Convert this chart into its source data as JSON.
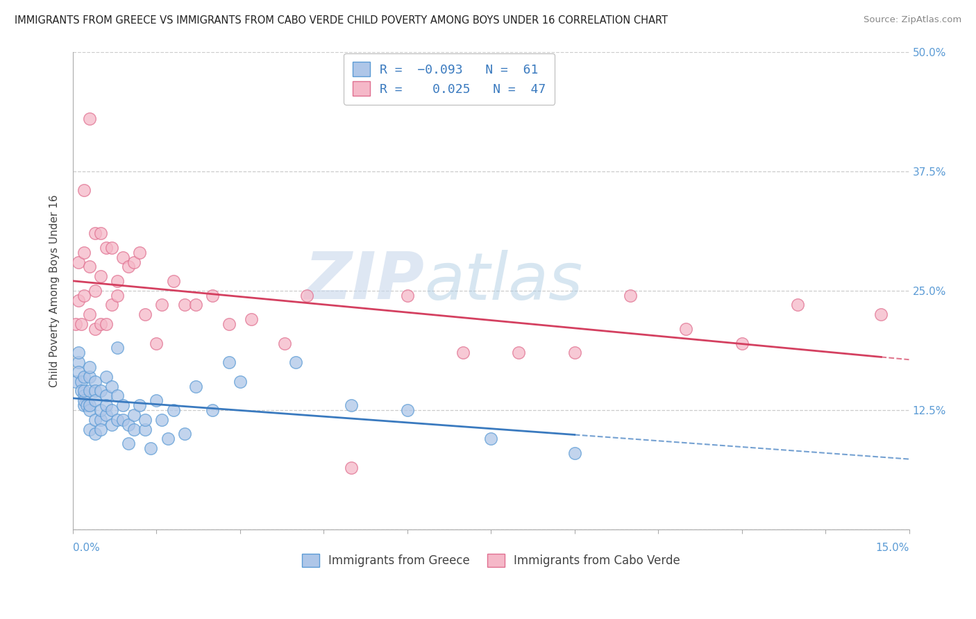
{
  "title": "IMMIGRANTS FROM GREECE VS IMMIGRANTS FROM CABO VERDE CHILD POVERTY AMONG BOYS UNDER 16 CORRELATION CHART",
  "source": "Source: ZipAtlas.com",
  "ylabel": "Child Poverty Among Boys Under 16",
  "xlim": [
    0,
    0.15
  ],
  "ylim": [
    0,
    0.5
  ],
  "yticks": [
    0.0,
    0.125,
    0.25,
    0.375,
    0.5
  ],
  "yticklabels": [
    "",
    "12.5%",
    "25.0%",
    "37.5%",
    "50.0%"
  ],
  "xtick_left_label": "0.0%",
  "xtick_right_label": "15.0%",
  "greece_color": "#aec6e8",
  "greece_edge": "#5b9bd5",
  "caboverde_color": "#f5b8c8",
  "caboverde_edge": "#e07090",
  "trend_greece_color": "#3a7abf",
  "trend_caboverde_color": "#d44060",
  "R_greece": -0.093,
  "N_greece": 61,
  "R_caboverde": 0.025,
  "N_caboverde": 47,
  "legend_label_greece": "Immigrants from Greece",
  "legend_label_caboverde": "Immigrants from Cabo Verde",
  "watermark_zip": "ZIP",
  "watermark_atlas": "atlas",
  "background": "#ffffff",
  "greece_x": [
    0.0005,
    0.001,
    0.001,
    0.001,
    0.0015,
    0.0015,
    0.002,
    0.002,
    0.002,
    0.002,
    0.002,
    0.0025,
    0.003,
    0.003,
    0.003,
    0.003,
    0.003,
    0.003,
    0.004,
    0.004,
    0.004,
    0.004,
    0.004,
    0.005,
    0.005,
    0.005,
    0.005,
    0.006,
    0.006,
    0.006,
    0.006,
    0.007,
    0.007,
    0.007,
    0.008,
    0.008,
    0.008,
    0.009,
    0.009,
    0.01,
    0.01,
    0.011,
    0.011,
    0.012,
    0.013,
    0.013,
    0.014,
    0.015,
    0.016,
    0.017,
    0.018,
    0.02,
    0.022,
    0.025,
    0.028,
    0.03,
    0.04,
    0.05,
    0.06,
    0.075,
    0.09
  ],
  "greece_y": [
    0.155,
    0.175,
    0.165,
    0.185,
    0.155,
    0.145,
    0.14,
    0.16,
    0.13,
    0.135,
    0.145,
    0.13,
    0.125,
    0.145,
    0.16,
    0.17,
    0.13,
    0.105,
    0.155,
    0.145,
    0.1,
    0.135,
    0.115,
    0.145,
    0.115,
    0.125,
    0.105,
    0.14,
    0.12,
    0.13,
    0.16,
    0.15,
    0.125,
    0.11,
    0.14,
    0.115,
    0.19,
    0.13,
    0.115,
    0.11,
    0.09,
    0.12,
    0.105,
    0.13,
    0.105,
    0.115,
    0.085,
    0.135,
    0.115,
    0.095,
    0.125,
    0.1,
    0.15,
    0.125,
    0.175,
    0.155,
    0.175,
    0.13,
    0.125,
    0.095,
    0.08
  ],
  "caboverde_x": [
    0.0005,
    0.001,
    0.001,
    0.0015,
    0.002,
    0.002,
    0.002,
    0.003,
    0.003,
    0.003,
    0.004,
    0.004,
    0.004,
    0.005,
    0.005,
    0.005,
    0.006,
    0.006,
    0.007,
    0.007,
    0.008,
    0.008,
    0.009,
    0.01,
    0.011,
    0.012,
    0.013,
    0.015,
    0.016,
    0.018,
    0.02,
    0.022,
    0.025,
    0.028,
    0.032,
    0.038,
    0.042,
    0.05,
    0.06,
    0.07,
    0.08,
    0.09,
    0.1,
    0.11,
    0.12,
    0.13,
    0.145
  ],
  "caboverde_y": [
    0.215,
    0.28,
    0.24,
    0.215,
    0.245,
    0.29,
    0.355,
    0.225,
    0.275,
    0.43,
    0.31,
    0.25,
    0.21,
    0.31,
    0.265,
    0.215,
    0.295,
    0.215,
    0.235,
    0.295,
    0.26,
    0.245,
    0.285,
    0.275,
    0.28,
    0.29,
    0.225,
    0.195,
    0.235,
    0.26,
    0.235,
    0.235,
    0.245,
    0.215,
    0.22,
    0.195,
    0.245,
    0.065,
    0.245,
    0.185,
    0.185,
    0.185,
    0.245,
    0.21,
    0.195,
    0.235,
    0.225
  ]
}
